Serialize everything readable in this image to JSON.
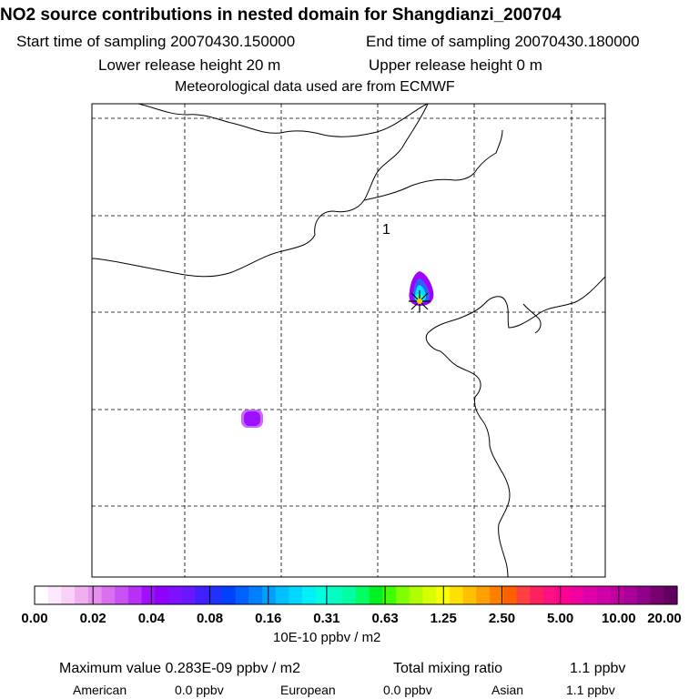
{
  "header": {
    "title": "NO2 source contributions in nested domain for Shangdianzi_200704",
    "start_time": "Start time of sampling 20070430.150000",
    "end_time": "End time of sampling 20070430.180000",
    "lower_release": "Lower release height   20 m",
    "upper_release": "Upper release height    0 m",
    "met_data": "Meteorological data used are from ECMWF"
  },
  "map": {
    "marker_label": "1",
    "colors": {
      "grid": "#000000",
      "coast": "#000000",
      "station_marker": "#000000",
      "station_center": "#ffd000",
      "plume_outer": "#a000ff",
      "plume_mid": "#3060ff",
      "plume_core": "#00e0ff",
      "plume_center": "#40ffb0"
    }
  },
  "colorbar": {
    "tick_labels": [
      "0.00",
      "0.02",
      "0.04",
      "0.08",
      "0.16",
      "0.31",
      "0.63",
      "1.25",
      "2.50",
      "5.00",
      "10.00",
      "20.00"
    ],
    "colors": [
      "#ffffff",
      "#fce8fc",
      "#f8d0f8",
      "#f0b0f0",
      "#e890f0",
      "#d870f0",
      "#c850f4",
      "#b830f8",
      "#a010fc",
      "#9000ff",
      "#7c10ff",
      "#6818ff",
      "#4020ff",
      "#2030ff",
      "#0040ff",
      "#0060ff",
      "#0080ff",
      "#00a0ff",
      "#00c0ff",
      "#00d8ff",
      "#00f0f8",
      "#00ffe0",
      "#00ffc0",
      "#00ffa0",
      "#00ff60",
      "#00f020",
      "#40ff00",
      "#80ff00",
      "#b0ff00",
      "#d8ff00",
      "#f8ff00",
      "#ffe000",
      "#ffc000",
      "#ffa000",
      "#ff8000",
      "#ff6000",
      "#ff4040",
      "#ff2060",
      "#ff1080",
      "#ff0090",
      "#f000a0",
      "#e000a8",
      "#d000a8",
      "#c000a0",
      "#a80098",
      "#900088",
      "#780070",
      "#600060"
    ],
    "units": "10E-10 ppbv / m2"
  },
  "footer": {
    "max_value": "Maximum value  0.283E-09 ppbv / m2",
    "total_label": "Total mixing ratio",
    "total_value": "1.1 ppbv",
    "american_label": "American",
    "american_value": "0.0 ppbv",
    "european_label": "European",
    "european_value": "0.0 ppbv",
    "asian_label": "Asian",
    "asian_value": "1.1 ppbv"
  }
}
